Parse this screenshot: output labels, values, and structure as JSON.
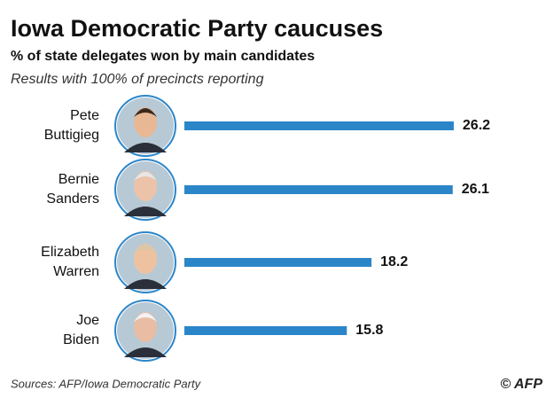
{
  "chart_data": {
    "type": "bar",
    "title": "Iowa Democratic Party caucuses",
    "subtitle": "% of state delegates won by main candidates",
    "note": "Results with 100% of precincts reporting",
    "source": "Sources: AFP/Iowa Democratic Party",
    "credit": "© AFP",
    "categories": [
      "Pete Buttigieg",
      "Bernie Sanders",
      "Elizabeth Warren",
      "Joe Biden"
    ],
    "values": [
      26.2,
      26.1,
      18.2,
      15.8
    ],
    "color": "#2b86c9"
  }
}
